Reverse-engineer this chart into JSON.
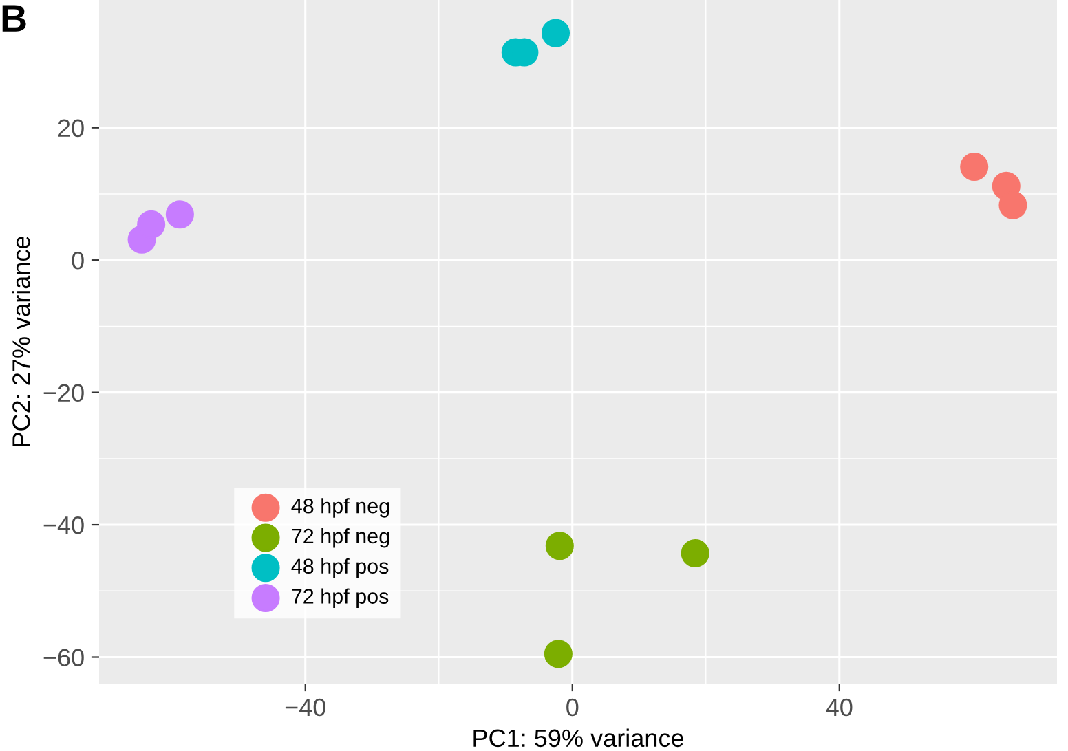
{
  "chart_data": {
    "type": "scatter",
    "xlabel": "PC1: 59% variance",
    "ylabel": "PC2: 27% variance",
    "annotations": [
      "B"
    ],
    "series": [
      {
        "name": "48 hpf neg",
        "color": "#f8766d",
        "x": [
          60.2,
          65.0,
          66.0
        ],
        "values": [
          14.1,
          11.2,
          8.3
        ]
      },
      {
        "name": "72 hpf neg",
        "color": "#7cae00",
        "x": [
          -1.9,
          18.4,
          -2.1
        ],
        "values": [
          -43.2,
          -44.3,
          -59.5
        ]
      },
      {
        "name": "48 hpf pos",
        "color": "#00bfc4",
        "x": [
          -8.5,
          -7.2,
          -2.5
        ],
        "values": [
          31.4,
          31.4,
          34.3
        ]
      },
      {
        "name": "72 hpf pos",
        "color": "#c77cff",
        "x": [
          -64.5,
          -63.1,
          -58.8
        ],
        "values": [
          3.1,
          5.4,
          6.9
        ]
      }
    ],
    "xlim": [
      -70.9,
      72.6
    ],
    "ylim": [
      -64,
      39.3
    ],
    "xticks": [
      {
        "value": -40,
        "label": "−40"
      },
      0,
      40
    ],
    "yticks": [
      {
        "value": -60,
        "label": "−60"
      },
      {
        "value": -40,
        "label": "−40"
      },
      {
        "value": -20,
        "label": "−20"
      },
      0,
      20
    ],
    "grid": true,
    "legend": "bottom left",
    "marker": "circle"
  }
}
